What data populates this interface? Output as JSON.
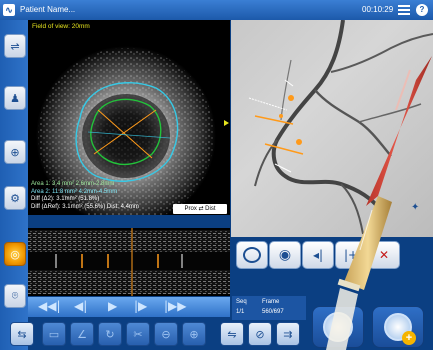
{
  "titlebar": {
    "patient_label": "Patient Name...",
    "clock": "00:10:29"
  },
  "ivus": {
    "field_of_view": "Field of view: 20mm",
    "area1": "Area 1: 3.4 mm² 2.6mm-2.8mm",
    "area2": "Area 2: 11.8 mm² 4.2mm-4.5mm",
    "diff_line1": "Diff (Δ2): 3.1mm² (51.8%)",
    "diff_line2": "Diff (ΔRef): 3.1mm² (55.6%)  Dist: 4.4mm",
    "prox_dist_label": "Prox ⇄ Dist"
  },
  "sequence": {
    "seq_label": "Seq",
    "frame_label": "Frame",
    "seq_value": "1/1",
    "frame_value": "560/697"
  },
  "colors": {
    "accent_yellow": "#e7e51e",
    "lumen_green": "#22c33a",
    "vessel_cyan": "#36c9e6",
    "measure_orange": "#ff9a1a"
  },
  "icons": {
    "sidebar": [
      "usb-icon",
      "person-icon",
      "zoom-icon",
      "settings-icon",
      "target-icon",
      "bookmark-icon"
    ],
    "playback": [
      "skip-back-icon",
      "step-back-icon",
      "play-icon",
      "step-forward-icon",
      "skip-forward-icon"
    ],
    "toolbar": [
      "link-icon",
      "measure-icon",
      "angle-icon",
      "rotate-icon",
      "cut-icon",
      "zoom-out-icon",
      "zoom-in-icon",
      "compare-icon",
      "tag-icon",
      "split-icon"
    ],
    "right": [
      "roi-icon",
      "eye-icon",
      "arrow-left-icon",
      "add-marker-icon",
      "delete-icon"
    ]
  }
}
